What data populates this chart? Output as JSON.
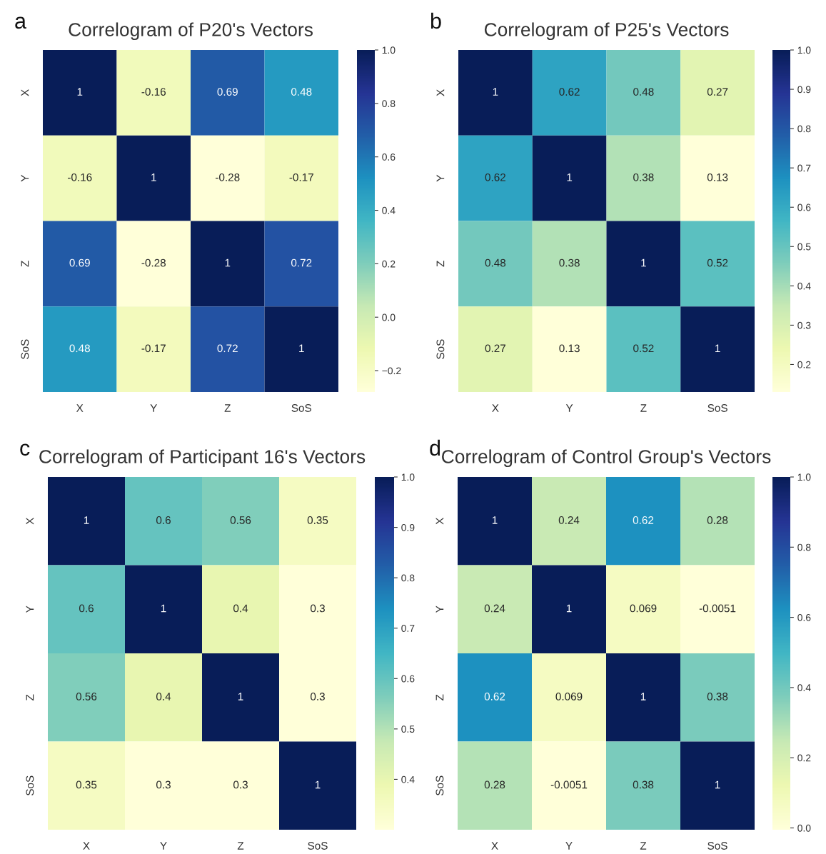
{
  "chart_data": [
    {
      "type": "heatmap",
      "title": "Correlogram of P20's Vectors",
      "annotations": [
        "a"
      ],
      "categories": [
        "X",
        "Y",
        "Z",
        "SoS"
      ],
      "y_categories": [
        "X",
        "Y",
        "Z",
        "SoS"
      ],
      "cells": [
        [
          1,
          -0.16,
          0.69,
          0.48
        ],
        [
          -0.16,
          1,
          -0.28,
          -0.17
        ],
        [
          0.69,
          -0.28,
          1,
          0.72
        ],
        [
          0.48,
          -0.17,
          0.72,
          1
        ]
      ],
      "data_labels": true,
      "clim": [
        -0.28,
        1
      ],
      "cticks": [
        {
          "value": -0.2,
          "label": "−0.2"
        },
        {
          "value": 0.0,
          "label": "0.0"
        },
        {
          "value": 0.2,
          "label": "0.2"
        },
        {
          "value": 0.4,
          "label": "0.4"
        },
        {
          "value": 0.6,
          "label": "0.6"
        },
        {
          "value": 0.8,
          "label": "0.8"
        },
        {
          "value": 1.0,
          "label": "1.0"
        }
      ]
    },
    {
      "type": "heatmap",
      "title": "Correlogram of P25's Vectors",
      "annotations": [
        "b"
      ],
      "categories": [
        "X",
        "Y",
        "Z",
        "SoS"
      ],
      "y_categories": [
        "X",
        "Y",
        "Z",
        "SoS"
      ],
      "cells": [
        [
          1,
          0.62,
          0.48,
          0.27
        ],
        [
          0.62,
          1,
          0.38,
          0.13
        ],
        [
          0.48,
          0.38,
          1,
          0.52
        ],
        [
          0.27,
          0.13,
          0.52,
          1
        ]
      ],
      "data_labels": true,
      "clim": [
        0.13,
        1
      ],
      "cticks": [
        {
          "value": 0.2,
          "label": "0.2"
        },
        {
          "value": 0.3,
          "label": "0.3"
        },
        {
          "value": 0.4,
          "label": "0.4"
        },
        {
          "value": 0.5,
          "label": "0.5"
        },
        {
          "value": 0.6,
          "label": "0.6"
        },
        {
          "value": 0.7,
          "label": "0.7"
        },
        {
          "value": 0.8,
          "label": "0.8"
        },
        {
          "value": 0.9,
          "label": "0.9"
        },
        {
          "value": 1.0,
          "label": "1.0"
        }
      ]
    },
    {
      "type": "heatmap",
      "title": "Correlogram of Participant 16's Vectors",
      "annotations": [
        "c"
      ],
      "categories": [
        "X",
        "Y",
        "Z",
        "SoS"
      ],
      "y_categories": [
        "X",
        "Y",
        "Z",
        "SoS"
      ],
      "cells": [
        [
          1,
          0.6,
          0.56,
          0.35
        ],
        [
          0.6,
          1,
          0.4,
          0.3
        ],
        [
          0.56,
          0.4,
          1,
          0.3
        ],
        [
          0.35,
          0.3,
          0.3,
          1
        ]
      ],
      "data_labels": true,
      "clim": [
        0.3,
        1
      ],
      "cticks": [
        {
          "value": 0.4,
          "label": "0.4"
        },
        {
          "value": 0.5,
          "label": "0.5"
        },
        {
          "value": 0.6,
          "label": "0.6"
        },
        {
          "value": 0.7,
          "label": "0.7"
        },
        {
          "value": 0.8,
          "label": "0.8"
        },
        {
          "value": 0.9,
          "label": "0.9"
        },
        {
          "value": 1.0,
          "label": "1.0"
        }
      ]
    },
    {
      "type": "heatmap",
      "title": "Correlogram of Control Group's Vectors",
      "annotations": [
        "d"
      ],
      "categories": [
        "X",
        "Y",
        "Z",
        "SoS"
      ],
      "y_categories": [
        "X",
        "Y",
        "Z",
        "SoS"
      ],
      "cells": [
        [
          1,
          0.24,
          0.62,
          0.28
        ],
        [
          0.24,
          1,
          0.069,
          -0.0051
        ],
        [
          0.62,
          0.069,
          1,
          0.38
        ],
        [
          0.28,
          -0.0051,
          0.38,
          1
        ]
      ],
      "data_labels": true,
      "clim": [
        -0.0051,
        1
      ],
      "cticks": [
        {
          "value": 0.0,
          "label": "0.0"
        },
        {
          "value": 0.2,
          "label": "0.2"
        },
        {
          "value": 0.4,
          "label": "0.4"
        },
        {
          "value": 0.6,
          "label": "0.6"
        },
        {
          "value": 0.8,
          "label": "0.8"
        },
        {
          "value": 1.0,
          "label": "1.0"
        }
      ]
    }
  ]
}
